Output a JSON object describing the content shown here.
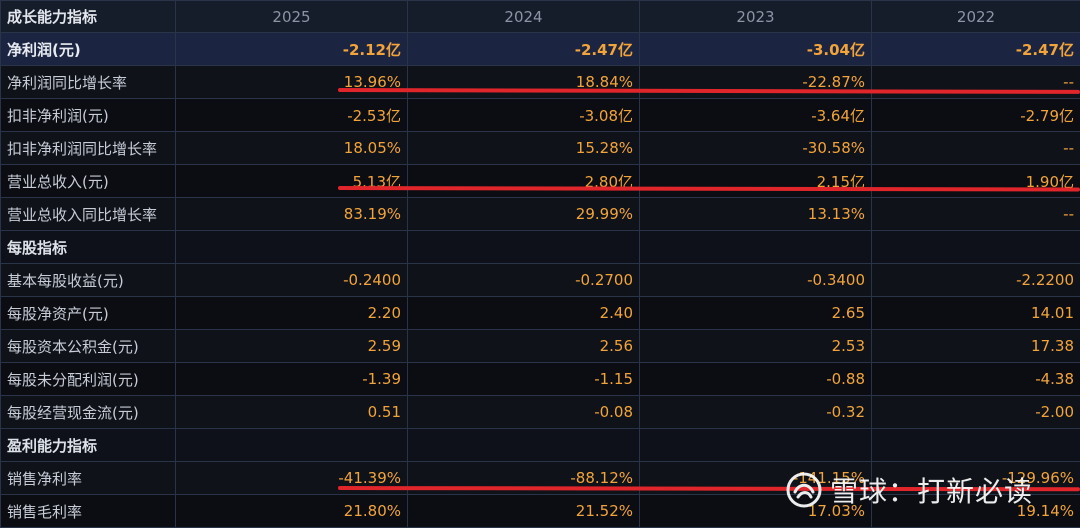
{
  "header": {
    "title": "成长能力指标",
    "years": [
      "2025",
      "2024",
      "2023",
      "2022"
    ]
  },
  "rows": [
    {
      "label": "净利润(元)",
      "values": [
        "-2.12亿",
        "-2.47亿",
        "-3.04亿",
        "-2.47亿"
      ]
    },
    {
      "label": "净利润同比增长率",
      "values": [
        "13.96%",
        "18.84%",
        "-22.87%",
        "--"
      ]
    },
    {
      "label": "扣非净利润(元)",
      "values": [
        "-2.53亿",
        "-3.08亿",
        "-3.64亿",
        "-2.79亿"
      ]
    },
    {
      "label": "扣非净利润同比增长率",
      "values": [
        "18.05%",
        "15.28%",
        "-30.58%",
        "--"
      ]
    },
    {
      "label": "营业总收入(元)",
      "values": [
        "5.13亿",
        "2.80亿",
        "2.15亿",
        "1.90亿"
      ]
    },
    {
      "label": "营业总收入同比增长率",
      "values": [
        "83.19%",
        "29.99%",
        "13.13%",
        "--"
      ]
    },
    {
      "label": "每股指标",
      "values": [
        "",
        "",
        "",
        ""
      ]
    },
    {
      "label": "基本每股收益(元)",
      "values": [
        "-0.2400",
        "-0.2700",
        "-0.3400",
        "-2.2200"
      ]
    },
    {
      "label": "每股净资产(元)",
      "values": [
        "2.20",
        "2.40",
        "2.65",
        "14.01"
      ]
    },
    {
      "label": "每股资本公积金(元)",
      "values": [
        "2.59",
        "2.56",
        "2.53",
        "17.38"
      ]
    },
    {
      "label": "每股未分配利润(元)",
      "values": [
        "-1.39",
        "-1.15",
        "-0.88",
        "-4.38"
      ]
    },
    {
      "label": "每股经营现金流(元)",
      "values": [
        "0.51",
        "-0.08",
        "-0.32",
        "-2.00"
      ]
    },
    {
      "label": "盈利能力指标",
      "values": [
        "",
        "",
        "",
        ""
      ]
    },
    {
      "label": "销售净利率",
      "values": [
        "-41.39%",
        "-88.12%",
        "-141.15%",
        "-129.96%"
      ]
    },
    {
      "label": "销售毛利率",
      "values": [
        "21.80%",
        "21.52%",
        "17.03%",
        "19.14%"
      ]
    }
  ],
  "watermark": {
    "text": "雪球：打新必读",
    "icon": "xueqiu-snowball-logo-icon"
  },
  "colors": {
    "value": "#f2a43a",
    "highlight_row": "#1b2541",
    "annotation_red": "#e0262b"
  }
}
